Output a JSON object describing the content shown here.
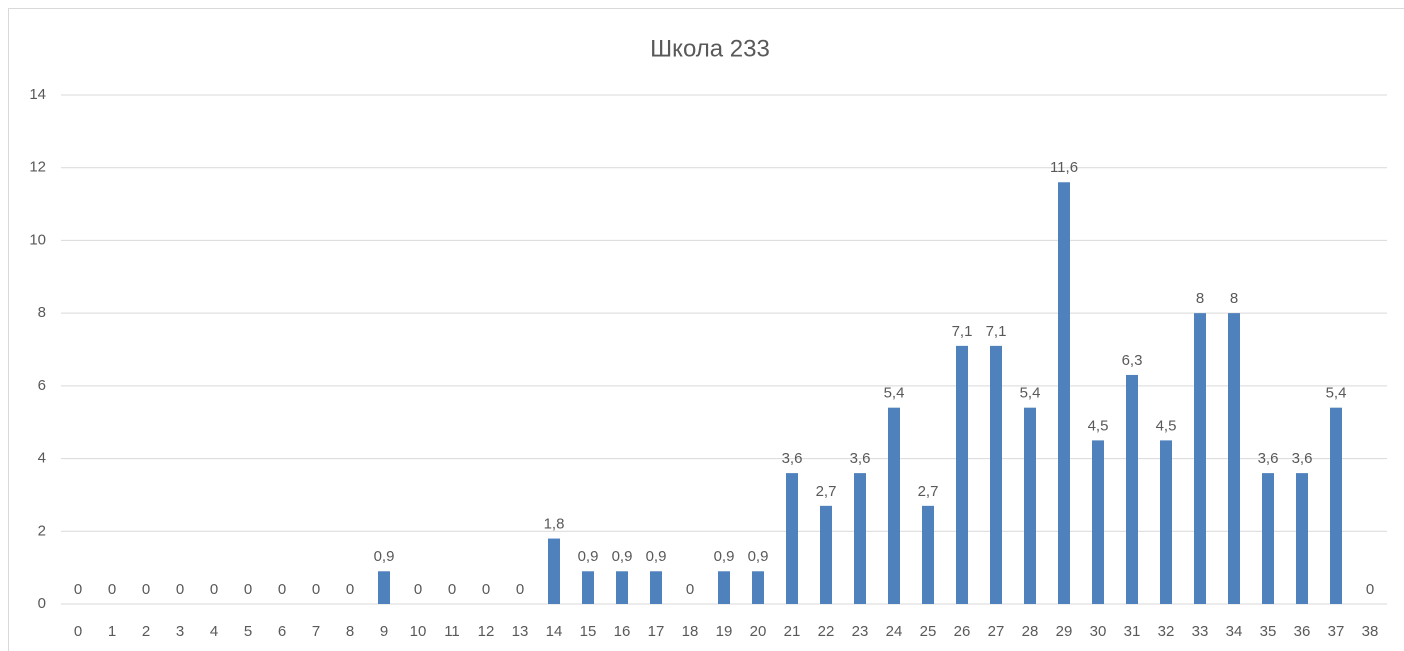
{
  "chart_data": {
    "type": "bar",
    "title": "Школа 233",
    "categories": [
      "0",
      "1",
      "2",
      "3",
      "4",
      "5",
      "6",
      "7",
      "8",
      "9",
      "10",
      "11",
      "12",
      "13",
      "14",
      "15",
      "16",
      "17",
      "18",
      "19",
      "20",
      "21",
      "22",
      "23",
      "24",
      "25",
      "26",
      "27",
      "28",
      "29",
      "30",
      "31",
      "32",
      "33",
      "34",
      "35",
      "36",
      "37",
      "38"
    ],
    "values": [
      0,
      0,
      0,
      0,
      0,
      0,
      0,
      0,
      0,
      0.9,
      0,
      0,
      0,
      0,
      1.8,
      0.9,
      0.9,
      0.9,
      0,
      0.9,
      0.9,
      3.6,
      2.7,
      3.6,
      5.4,
      2.7,
      7.1,
      7.1,
      5.4,
      11.6,
      4.5,
      6.3,
      4.5,
      8,
      8,
      3.6,
      3.6,
      5.4,
      0
    ],
    "value_labels": [
      "0",
      "0",
      "0",
      "0",
      "0",
      "0",
      "0",
      "0",
      "0",
      "0,9",
      "0",
      "0",
      "0",
      "0",
      "1,8",
      "0,9",
      "0,9",
      "0,9",
      "0",
      "0,9",
      "0,9",
      "3,6",
      "2,7",
      "3,6",
      "5,4",
      "2,7",
      "7,1",
      "7,1",
      "5,4",
      "11,6",
      "4,5",
      "6,3",
      "4,5",
      "8",
      "8",
      "3,6",
      "3,6",
      "5,4",
      "0"
    ],
    "color": "#4f81bd",
    "ylim": [
      0,
      14
    ],
    "yticks": [
      0,
      2,
      4,
      6,
      8,
      10,
      12,
      14
    ],
    "grid": true
  }
}
